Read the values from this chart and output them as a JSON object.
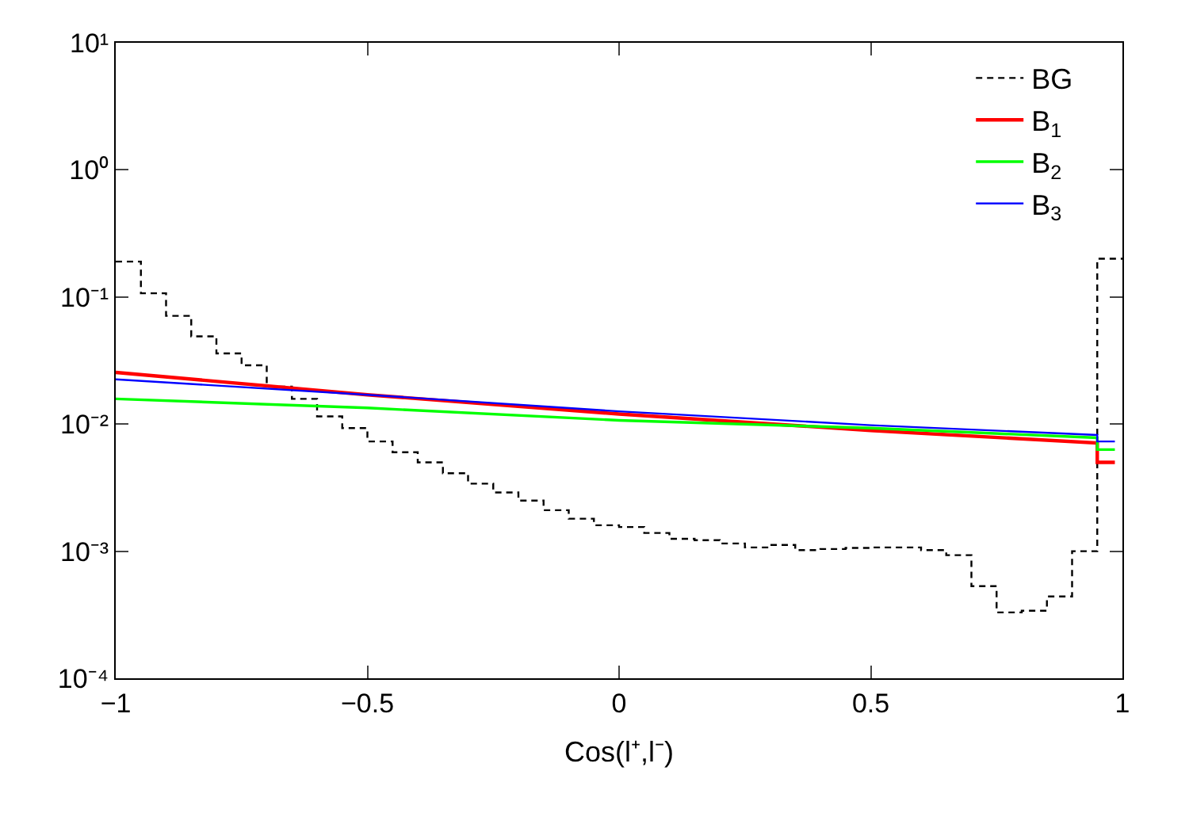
{
  "chart_data": {
    "type": "line",
    "xlabel": "Cos(l⁺,l⁻)",
    "xlim": [
      -1,
      1
    ],
    "xticks": [
      {
        "value": -1,
        "label": "−1"
      },
      {
        "value": -0.5,
        "label": "−0.5"
      },
      0,
      0.5,
      1
    ],
    "ylim": [
      0.0001,
      10
    ],
    "yticks": [
      {
        "value": 0.0001,
        "label": "10⁻⁴"
      },
      {
        "value": 0.001,
        "label": "10⁻³"
      },
      {
        "value": 0.01,
        "label": "10⁻²"
      },
      {
        "value": 0.1,
        "label": "10⁻¹"
      },
      {
        "value": 1,
        "label": "10⁰"
      },
      {
        "value": 10,
        "label": "10¹"
      }
    ],
    "log": "y",
    "legend": "top right",
    "series": [
      {
        "name": "BG",
        "type": "histogram",
        "color": "#000000",
        "line_style": "dashed",
        "bins": [
          -1,
          -0.95,
          -0.9,
          -0.85,
          -0.8,
          -0.75,
          -0.7,
          -0.65,
          -0.6,
          -0.55,
          -0.5,
          -0.45,
          -0.4,
          -0.35,
          -0.3,
          -0.25,
          -0.2,
          -0.15,
          -0.1,
          -0.05,
          0,
          0.05,
          0.1,
          0.15,
          0.2,
          0.25,
          0.3,
          0.35,
          0.4,
          0.45,
          0.5,
          0.55,
          0.6,
          0.65,
          0.7,
          0.75,
          0.8,
          0.85,
          0.9,
          0.95,
          1
        ],
        "values": [
          0.19,
          0.107,
          0.071,
          0.049,
          0.036,
          0.029,
          0.0197,
          0.0158,
          0.0115,
          0.0093,
          0.0073,
          0.006,
          0.005,
          0.0041,
          0.0034,
          0.0029,
          0.0025,
          0.0021,
          0.0018,
          0.0016,
          0.00155,
          0.00139,
          0.00125,
          0.00122,
          0.00115,
          0.00107,
          0.00112,
          0.00102,
          0.00104,
          0.00106,
          0.00107,
          0.00107,
          0.00102,
          0.00093,
          0.00053,
          0.00033,
          0.00034,
          0.00044,
          0.001,
          0.2
        ]
      },
      {
        "name": "B$_{1}$",
        "color": "#ff0000",
        "x": [
          -1,
          -0.5,
          0,
          0.5,
          0.95,
          0.95,
          0.985
        ],
        "values": [
          0.0255,
          0.017,
          0.012,
          0.0089,
          0.0071,
          0.005,
          0.005
        ]
      },
      {
        "name": "B$_{2}$",
        "color": "#00ff00",
        "x": [
          -1,
          -0.5,
          0,
          0.5,
          0.95,
          0.95,
          0.985
        ],
        "values": [
          0.0158,
          0.0134,
          0.0107,
          0.0093,
          0.0078,
          0.0063,
          0.0063
        ]
      },
      {
        "name": "B$_{3}$",
        "color": "#0000ff",
        "x": [
          -1,
          -0.5,
          0,
          0.5,
          0.95,
          0.95,
          0.985
        ],
        "values": [
          0.0225,
          0.017,
          0.0126,
          0.0098,
          0.0082,
          0.0073,
          0.0073
        ]
      }
    ]
  }
}
